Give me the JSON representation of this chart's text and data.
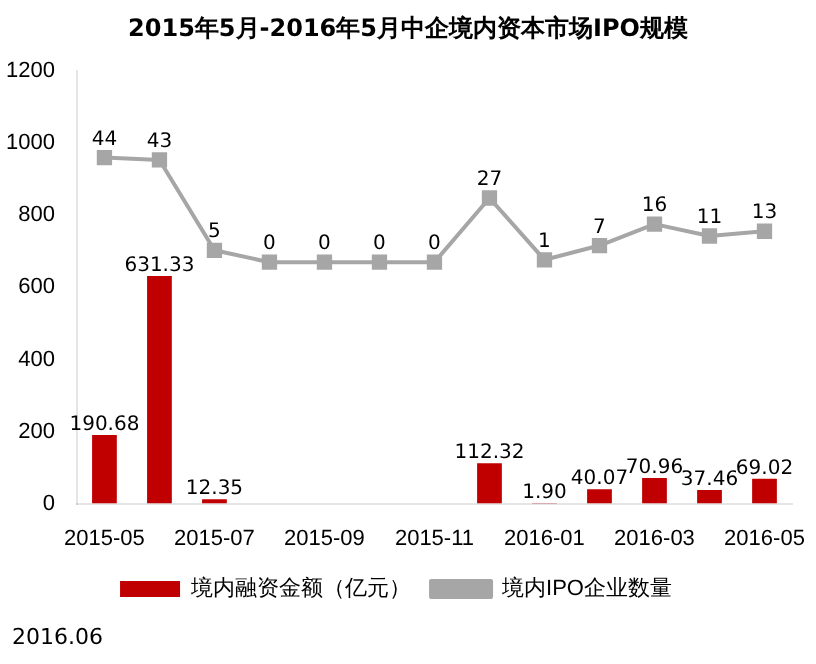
{
  "chart_data": {
    "type": "bar",
    "title": "2015年5月-2016年5月中企境内资本市场IPO规模",
    "categories": [
      "2015-05",
      null,
      "2015-07",
      null,
      "2015-09",
      null,
      "2015-11",
      null,
      "2016-01",
      null,
      "2016-03",
      null,
      "2016-05"
    ],
    "series": [
      {
        "name": "境内融资金额（亿元）",
        "color": "#c00000",
        "values": [
          190.68,
          631.33,
          12.35,
          0,
          0,
          0,
          0,
          112.32,
          1.9,
          40.07,
          70.96,
          37.46,
          69.02
        ],
        "value_labels": [
          "190.68",
          "631.33",
          "12.35",
          null,
          null,
          null,
          null,
          "112.32",
          "1.90",
          "40.07",
          "70.96",
          "37.46",
          "69.02"
        ]
      },
      {
        "name": "境内IPO企业数量",
        "type": "line",
        "axis": "y2",
        "color": "#a6a6a6",
        "marker": "square",
        "values": [
          44,
          43,
          5,
          0,
          0,
          0,
          0,
          27,
          1,
          7,
          16,
          11,
          13
        ],
        "value_labels": [
          "44",
          "43",
          "5",
          "0",
          "0",
          "0",
          "0",
          "27",
          "1",
          "7",
          "16",
          "11",
          "13"
        ]
      }
    ],
    "ylim": [
      0,
      1200
    ],
    "yticks": [
      0,
      200,
      400,
      600,
      800,
      1000,
      1200
    ],
    "y2lim": [
      -101.5,
      80.3
    ],
    "grid": false,
    "legend": "bottom",
    "annotations": [
      "2016.06"
    ]
  }
}
